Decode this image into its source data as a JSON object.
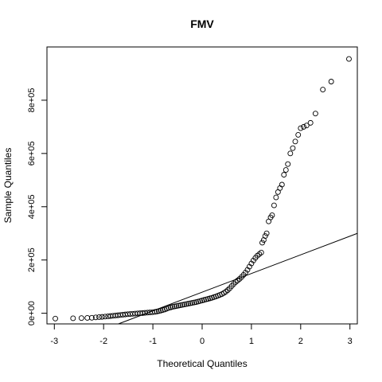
{
  "chart_data": {
    "type": "scatter",
    "title": "FMV",
    "xlabel": "Theoretical Quantiles",
    "ylabel": "Sample Quantiles",
    "xlim": [
      -3.15,
      3.15
    ],
    "ylim": [
      -40000,
      1000000
    ],
    "x_ticks": [
      -3,
      -2,
      -1,
      0,
      1,
      2,
      3
    ],
    "x_tick_labels": [
      "-3",
      "-2",
      "-1",
      "0",
      "1",
      "2",
      "3"
    ],
    "y_ticks": [
      0,
      200000,
      400000,
      600000,
      800000
    ],
    "y_tick_labels": [
      "0e+00",
      "2e+05",
      "4e+05",
      "6e+05",
      "8e+05"
    ],
    "grid": false,
    "reference_line": {
      "x": [
        -1.7,
        3.15
      ],
      "y": [
        -40000,
        300000
      ]
    },
    "points": [
      [
        -2.98,
        -20000
      ],
      [
        -2.62,
        -19000
      ],
      [
        -2.45,
        -18000
      ],
      [
        -2.33,
        -17500
      ],
      [
        -2.24,
        -17000
      ],
      [
        -2.16,
        -15500
      ],
      [
        -2.09,
        -14500
      ],
      [
        -2.03,
        -13500
      ],
      [
        -1.97,
        -12500
      ],
      [
        -1.91,
        -11500
      ],
      [
        -1.86,
        -10500
      ],
      [
        -1.81,
        -9500
      ],
      [
        -1.76,
        -8500
      ],
      [
        -1.71,
        -7500
      ],
      [
        -1.66,
        -6500
      ],
      [
        -1.61,
        -5500
      ],
      [
        -1.56,
        -4500
      ],
      [
        -1.51,
        -3500
      ],
      [
        -1.46,
        -2700
      ],
      [
        -1.41,
        -2000
      ],
      [
        -1.36,
        -1300
      ],
      [
        -1.31,
        -600
      ],
      [
        -1.26,
        0
      ],
      [
        -1.21,
        700
      ],
      [
        -1.16,
        1500
      ],
      [
        -1.11,
        2300
      ],
      [
        -1.06,
        3100
      ],
      [
        -1.01,
        4000
      ],
      [
        -0.96,
        5000
      ],
      [
        -0.92,
        6500
      ],
      [
        -0.88,
        8000
      ],
      [
        -0.84,
        10000
      ],
      [
        -0.8,
        12000
      ],
      [
        -0.76,
        14000
      ],
      [
        -0.72,
        17000
      ],
      [
        -0.68,
        20000
      ],
      [
        -0.64,
        22000
      ],
      [
        -0.6,
        24000
      ],
      [
        -0.56,
        25500
      ],
      [
        -0.52,
        27000
      ],
      [
        -0.48,
        28500
      ],
      [
        -0.44,
        30000
      ],
      [
        -0.4,
        31500
      ],
      [
        -0.36,
        33000
      ],
      [
        -0.32,
        34500
      ],
      [
        -0.28,
        36000
      ],
      [
        -0.24,
        37500
      ],
      [
        -0.2,
        39000
      ],
      [
        -0.16,
        40500
      ],
      [
        -0.12,
        42000
      ],
      [
        -0.08,
        44000
      ],
      [
        -0.04,
        46000
      ],
      [
        0.0,
        48000
      ],
      [
        0.04,
        50000
      ],
      [
        0.08,
        52000
      ],
      [
        0.12,
        54000
      ],
      [
        0.16,
        56000
      ],
      [
        0.2,
        58000
      ],
      [
        0.24,
        60500
      ],
      [
        0.28,
        63000
      ],
      [
        0.32,
        66000
      ],
      [
        0.36,
        69000
      ],
      [
        0.4,
        72000
      ],
      [
        0.44,
        76000
      ],
      [
        0.48,
        81000
      ],
      [
        0.52,
        87000
      ],
      [
        0.56,
        94000
      ],
      [
        0.6,
        102000
      ],
      [
        0.64,
        110000
      ],
      [
        0.68,
        117000
      ],
      [
        0.72,
        123000
      ],
      [
        0.76,
        129000
      ],
      [
        0.8,
        136000
      ],
      [
        0.84,
        144000
      ],
      [
        0.88,
        153000
      ],
      [
        0.92,
        163000
      ],
      [
        0.96,
        175000
      ],
      [
        1.0,
        187000
      ],
      [
        1.04,
        198000
      ],
      [
        1.08,
        208000
      ],
      [
        1.12,
        216000
      ],
      [
        1.16,
        222000
      ],
      [
        1.2,
        228000
      ],
      [
        1.22,
        265000
      ],
      [
        1.25,
        275000
      ],
      [
        1.28,
        290000
      ],
      [
        1.31,
        300000
      ],
      [
        1.35,
        345000
      ],
      [
        1.39,
        360000
      ],
      [
        1.42,
        368000
      ],
      [
        1.46,
        405000
      ],
      [
        1.5,
        435000
      ],
      [
        1.54,
        455000
      ],
      [
        1.58,
        470000
      ],
      [
        1.62,
        483000
      ],
      [
        1.66,
        520000
      ],
      [
        1.7,
        538000
      ],
      [
        1.74,
        560000
      ],
      [
        1.79,
        600000
      ],
      [
        1.84,
        620000
      ],
      [
        1.89,
        645000
      ],
      [
        1.95,
        670000
      ],
      [
        2.0,
        695000
      ],
      [
        2.06,
        700000
      ],
      [
        2.12,
        705000
      ],
      [
        2.2,
        715000
      ],
      [
        2.3,
        750000
      ],
      [
        2.45,
        840000
      ],
      [
        2.62,
        870000
      ],
      [
        2.98,
        955000
      ]
    ]
  }
}
